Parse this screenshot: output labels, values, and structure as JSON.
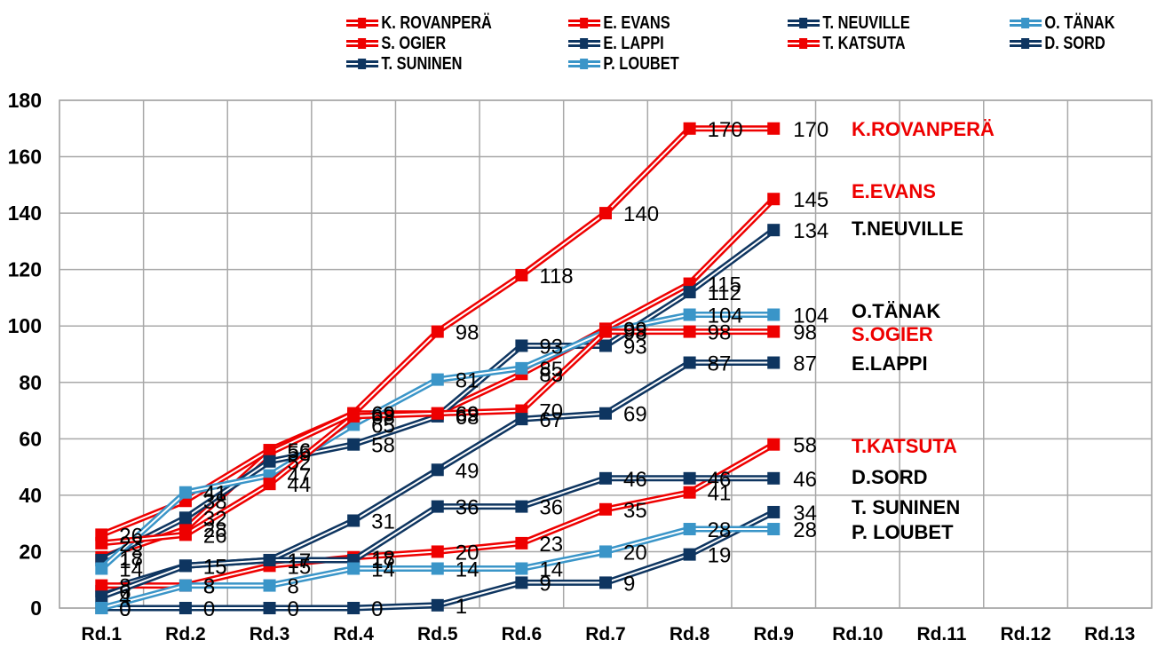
{
  "chart_data": {
    "type": "line",
    "title": "",
    "xlabel": "",
    "ylabel": "",
    "ylim": [
      0,
      180
    ],
    "yticks": [
      0,
      20,
      40,
      60,
      80,
      100,
      120,
      140,
      160,
      180
    ],
    "grid": true,
    "legend_position": "top",
    "categories": [
      "Rd.1",
      "Rd.2",
      "Rd.3",
      "Rd.4",
      "Rd.5",
      "Rd.6",
      "Rd.7",
      "Rd.8",
      "Rd.9",
      "Rd.10",
      "Rd.11",
      "Rd.12",
      "Rd.13"
    ],
    "series": [
      {
        "name": "K. ROVANPERÄ",
        "end_label": "K.ROVANPERÄ",
        "color": "#ee0000",
        "label_color": "#ee0000",
        "values": [
          26,
          38,
          56,
          69,
          98,
          118,
          140,
          170,
          170
        ]
      },
      {
        "name": "E. EVANS",
        "end_label": "E.EVANS",
        "color": "#ee0000",
        "label_color": "#ee0000",
        "values": [
          18,
          28,
          55,
          69,
          69,
          83,
          99,
          115,
          145
        ]
      },
      {
        "name": "T. NEUVILLE",
        "end_label": "T.NEUVILLE",
        "color": "#0e3560",
        "label_color": "#000000",
        "values": [
          17,
          32,
          52,
          58,
          68,
          93,
          93,
          112,
          134
        ]
      },
      {
        "name": "O. TÄNAK",
        "end_label": "O.TÄNAK",
        "color": "#3a95c8",
        "label_color": "#000000",
        "values": [
          14,
          41,
          47,
          65,
          81,
          85,
          98,
          104,
          104
        ]
      },
      {
        "name": "S. OGIER",
        "end_label": "S.OGIER",
        "color": "#ee0000",
        "label_color": "#ee0000",
        "values": [
          23,
          26,
          44,
          68,
          69,
          70,
          98,
          98,
          98
        ]
      },
      {
        "name": "E. LAPPI",
        "end_label": "E.LAPPI",
        "color": "#0e3560",
        "label_color": "#000000",
        "values": [
          6,
          15,
          17,
          31,
          49,
          67,
          69,
          87,
          87
        ]
      },
      {
        "name": "T. KATSUTA",
        "end_label": "T.KATSUTA",
        "color": "#ee0000",
        "label_color": "#ee0000",
        "values": [
          8,
          8,
          15,
          18,
          20,
          23,
          35,
          41,
          58
        ]
      },
      {
        "name": "D. SORD",
        "end_label": "D.SORD",
        "color": "#0e3560",
        "label_color": "#000000",
        "values": [
          4,
          15,
          17,
          17,
          36,
          36,
          46,
          46,
          46
        ]
      },
      {
        "name": "T. SUNINEN",
        "end_label": "T. SUNINEN",
        "color": "#0e3560",
        "label_color": "#000000",
        "values": [
          0,
          0,
          0,
          0,
          1,
          9,
          9,
          19,
          34
        ]
      },
      {
        "name": "P. LOUBET",
        "end_label": "P. LOUBET",
        "color": "#3a95c8",
        "label_color": "#000000",
        "values": [
          0,
          8,
          8,
          14,
          14,
          14,
          20,
          28,
          28
        ]
      }
    ]
  },
  "legend": {
    "items": [
      {
        "label": "K. ROVANPERÄ",
        "color": "#ee0000"
      },
      {
        "label": "E. EVANS",
        "color": "#ee0000"
      },
      {
        "label": "T. NEUVILLE",
        "color": "#0e3560"
      },
      {
        "label": "O. TÄNAK",
        "color": "#3a95c8"
      },
      {
        "label": "S. OGIER",
        "color": "#ee0000"
      },
      {
        "label": "E. LAPPI",
        "color": "#0e3560"
      },
      {
        "label": "T. KATSUTA",
        "color": "#ee0000"
      },
      {
        "label": "D. SORD",
        "color": "#0e3560"
      },
      {
        "label": "T. SUNINEN",
        "color": "#0e3560"
      },
      {
        "label": "P. LOUBET",
        "color": "#3a95c8"
      }
    ]
  }
}
